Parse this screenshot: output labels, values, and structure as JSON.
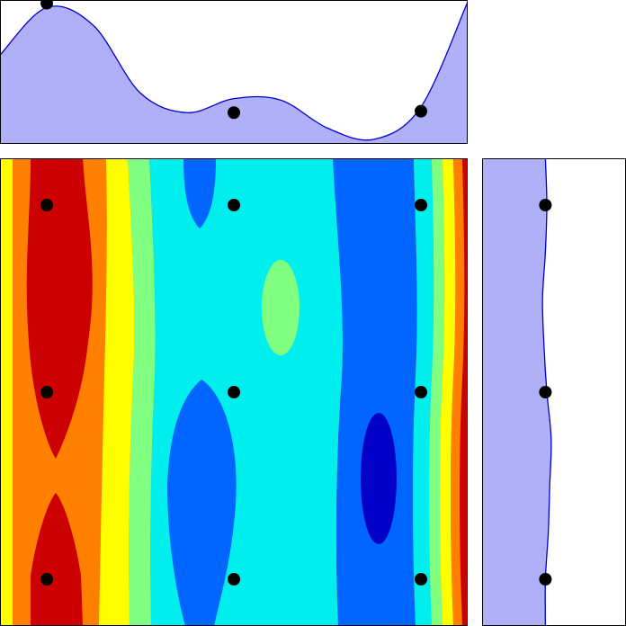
{
  "chart_data": [
    {
      "panel": "top-marginal",
      "type": "area",
      "x": [
        0.0,
        0.1,
        0.2,
        0.3,
        0.4,
        0.5,
        0.6,
        0.7,
        0.8,
        0.9,
        1.0
      ],
      "y": [
        0.62,
        0.96,
        0.83,
        0.35,
        0.21,
        0.31,
        0.3,
        0.1,
        0.02,
        0.25,
        1.0
      ],
      "markers": {
        "x": [
          0.1,
          0.5,
          0.9
        ],
        "y": [
          0.99,
          0.21,
          0.22
        ]
      },
      "fill_color": "#b0b0f8",
      "line_color": "#0000cc"
    },
    {
      "panel": "right-marginal",
      "type": "area",
      "orientation": "horizontal",
      "y": [
        0.0,
        0.1,
        0.2,
        0.3,
        0.4,
        0.5,
        0.6,
        0.7,
        0.8,
        0.9,
        1.0
      ],
      "x": [
        0.44,
        0.45,
        0.44,
        0.42,
        0.43,
        0.45,
        0.48,
        0.47,
        0.46,
        0.44,
        0.44
      ],
      "markers": {
        "y": [
          0.1,
          0.5,
          0.9
        ],
        "x": [
          0.44,
          0.44,
          0.44
        ]
      },
      "fill_color": "#b0b0f8",
      "line_color": "#0000cc"
    },
    {
      "panel": "main",
      "type": "heatmap",
      "style": "filled-contour",
      "colormap": [
        "#0000c8",
        "#0066ff",
        "#00eeee",
        "#80ff80",
        "#ffff00",
        "#ff8000",
        "#cc0000"
      ],
      "points": {
        "x": [
          0.1,
          0.5,
          0.9
        ],
        "y": [
          0.1,
          0.5,
          0.9
        ]
      }
    }
  ]
}
